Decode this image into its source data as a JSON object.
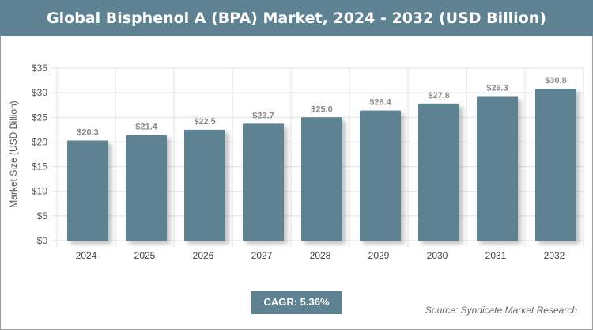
{
  "title": "Global Bisphenol A (BPA) Market, 2024 - 2032 (USD Billion)",
  "cagr": "CAGR: 5.36%",
  "source": "Source: Syndicate Market Research",
  "colors": {
    "bar": "#5f8292",
    "header": "#5f8292"
  },
  "chart_data": {
    "type": "bar",
    "categories": [
      "2024",
      "2025",
      "2026",
      "2027",
      "2028",
      "2029",
      "2030",
      "2031",
      "2032"
    ],
    "values": [
      20.3,
      21.4,
      22.5,
      23.7,
      25.0,
      26.4,
      27.8,
      29.3,
      30.8
    ],
    "data_labels": [
      "$20.3",
      "$21.4",
      "$22.5",
      "$23.7",
      "$25.0",
      "$26.4",
      "$27.8",
      "$29.3",
      "$30.8"
    ],
    "ylabel": "Market Size (USD Billion)",
    "xlabel": "",
    "ylim": [
      0,
      35
    ],
    "yticks": [
      "$0",
      "$5",
      "$10",
      "$15",
      "$20",
      "$25",
      "$30",
      "$35"
    ],
    "grid": true
  }
}
